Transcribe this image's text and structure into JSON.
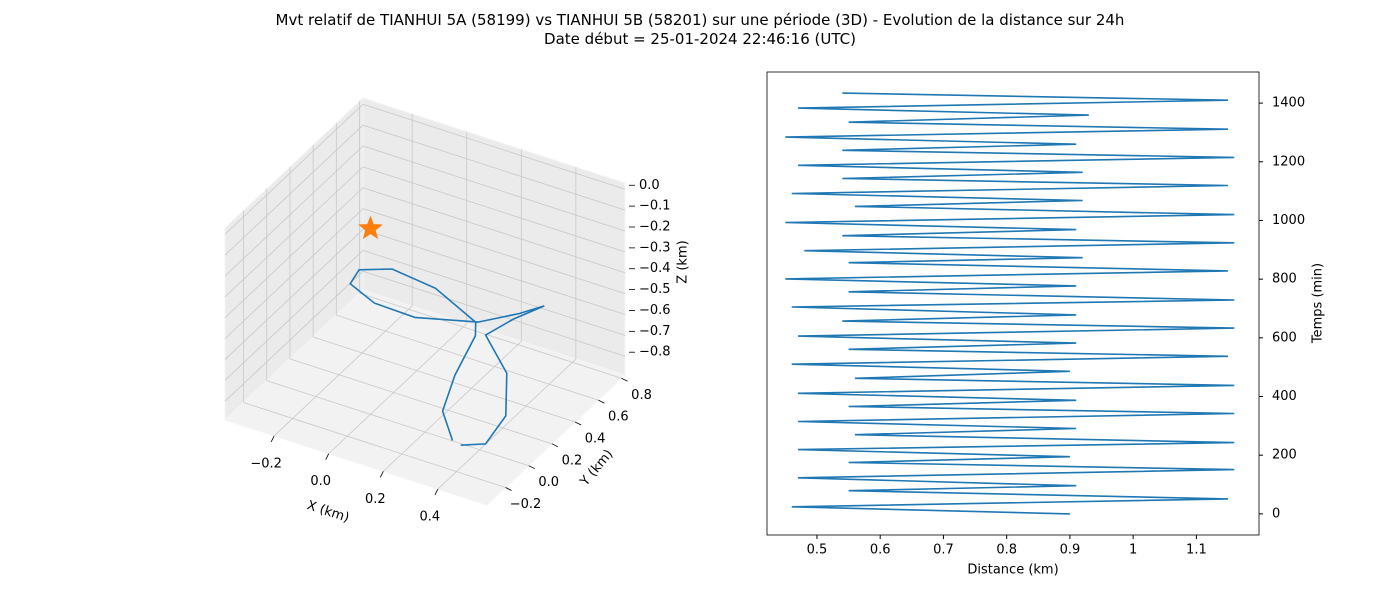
{
  "figure": {
    "title": "Mvt relatif de TIANHUI 5A (58199) vs TIANHUI 5B (58201) sur une période (3D) - Evolution de la distance sur 24h",
    "subtitle": "Date début = 25-01-2024 22:46:16 (UTC)"
  },
  "chart_data": [
    {
      "type": "line3d",
      "x_label": "X (km)",
      "y_label": "Y (km)",
      "z_label": "Z (km)",
      "xlim": [
        -0.38,
        0.58
      ],
      "ylim": [
        -0.36,
        0.83
      ],
      "zlim": [
        -0.89,
        0.03
      ],
      "xticks": [
        {
          "value": -0.2,
          "label": "−0.2"
        },
        {
          "value": 0,
          "label": "0.0"
        },
        0.2,
        0.4
      ],
      "yticks": [
        {
          "value": -0.2,
          "label": "−0.2"
        },
        {
          "value": 0,
          "label": "0.0"
        },
        0.2,
        0.4,
        0.6,
        0.8
      ],
      "zticks": [
        {
          "value": 0,
          "label": "0.0"
        },
        {
          "value": -0.1,
          "label": "−0.1"
        },
        {
          "value": -0.2,
          "label": "−0.2"
        },
        {
          "value": -0.3,
          "label": "−0.3"
        },
        {
          "value": -0.4,
          "label": "−0.4"
        },
        {
          "value": -0.5,
          "label": "−0.5"
        },
        {
          "value": -0.6,
          "label": "−0.6"
        },
        {
          "value": -0.7,
          "label": "−0.7"
        },
        {
          "value": -0.8,
          "label": "−0.8"
        }
      ],
      "grid": true,
      "series": [
        {
          "color": "#1f77b4",
          "x": [
            0.39,
            0.29,
            0.25,
            0.24,
            0.22,
            0.03,
            -0.15,
            -0.25,
            -0.24,
            -0.13,
            0.01,
            0.25,
            0.38,
            0.45,
            0.38,
            0.32,
            0.44,
            0.5,
            0.49,
            0.42
          ],
          "y": [
            -0.21,
            -0.06,
            0.14,
            0.34,
            0.39,
            0.49,
            0.54,
            0.49,
            0.39,
            0.34,
            0.36,
            0.34,
            0.39,
            0.44,
            0.34,
            0.24,
            0.14,
            -0.01,
            -0.16,
            -0.21
          ],
          "z": [
            -0.74,
            -0.72,
            -0.67,
            -0.59,
            -0.56,
            -0.53,
            -0.54,
            -0.56,
            -0.57,
            -0.59,
            -0.61,
            -0.52,
            -0.45,
            -0.41,
            -0.45,
            -0.5,
            -0.58,
            -0.68,
            -0.74,
            -0.75
          ]
        }
      ],
      "points": [
        {
          "color": "#ff7f0e",
          "marker": "star",
          "x": [
            0
          ],
          "y": [
            0
          ],
          "z": [
            0
          ]
        }
      ]
    },
    {
      "type": "line",
      "x_label": "Distance (km)",
      "y_label": "Temps (min)",
      "y_axis_side": "right",
      "xlim": [
        0.421,
        1.199
      ],
      "ylim": [
        -72,
        1506
      ],
      "xticks": [
        0.5,
        0.6,
        0.7,
        0.8,
        0.9,
        1.0,
        1.1
      ],
      "yticks": [
        0,
        200,
        400,
        600,
        800,
        1000,
        1200,
        1400
      ],
      "series": [
        {
          "color": "#1f77b4",
          "x": [
            0.9,
            0.46,
            1.15,
            0.55,
            0.91,
            0.47,
            1.16,
            0.55,
            0.9,
            0.47,
            1.16,
            0.56,
            0.91,
            0.47,
            1.16,
            0.55,
            0.91,
            0.47,
            1.16,
            0.56,
            0.9,
            0.46,
            1.15,
            0.55,
            0.91,
            0.47,
            1.16,
            0.54,
            0.91,
            0.46,
            1.16,
            0.55,
            0.91,
            0.45,
            1.15,
            0.55,
            0.92,
            0.48,
            1.16,
            0.54,
            0.91,
            0.45,
            1.16,
            0.56,
            0.92,
            0.46,
            1.15,
            0.54,
            0.92,
            0.47,
            1.16,
            0.54,
            0.91,
            0.45,
            1.15,
            0.55,
            0.93,
            0.47,
            1.15,
            0.54
          ],
          "values": [
            0,
            24,
            51,
            79,
            96,
            123,
            151,
            175,
            195,
            219,
            243,
            270,
            291,
            315,
            342,
            366,
            387,
            411,
            438,
            462,
            486,
            510,
            537,
            561,
            582,
            606,
            633,
            657,
            678,
            705,
            729,
            757,
            777,
            801,
            828,
            856,
            873,
            897,
            924,
            948,
            969,
            993,
            1020,
            1048,
            1068,
            1092,
            1119,
            1143,
            1164,
            1188,
            1215,
            1239,
            1260,
            1284,
            1311,
            1335,
            1359,
            1383,
            1410,
            1434
          ]
        }
      ]
    }
  ]
}
